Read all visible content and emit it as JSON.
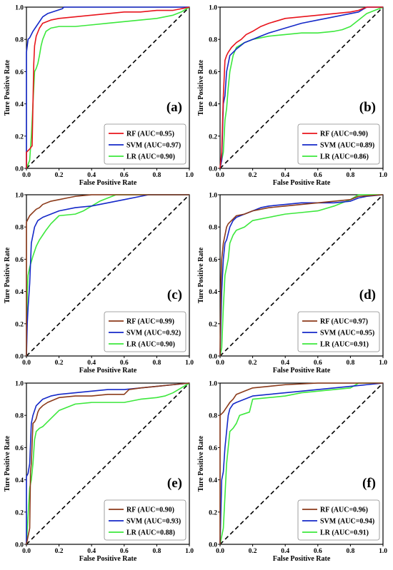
{
  "chart_data": [
    {
      "type": "line",
      "label": "(a)",
      "xlabel": "False Positive Rate",
      "ylabel": "Ture Positive Rate",
      "xlim": [
        0,
        1
      ],
      "ylim": [
        0,
        1
      ],
      "xticks": [
        "0.0",
        "0.2",
        "0.4",
        "0.6",
        "0.8",
        "1.0"
      ],
      "yticks": [
        "0.0",
        "0.2",
        "0.4",
        "0.6",
        "0.8",
        "1.0"
      ],
      "legend_position": "bottom-right",
      "series": [
        {
          "name": "RF (AUC=0.95)",
          "color": "#e8141c",
          "x": [
            0,
            0,
            0.02,
            0.035,
            0.04,
            0.045,
            0.05,
            0.06,
            0.08,
            0.1,
            0.15,
            0.2,
            0.3,
            0.4,
            0.5,
            0.6,
            0.7,
            0.8,
            0.9,
            0.95,
            1
          ],
          "y": [
            0,
            0.1,
            0.12,
            0.14,
            0.4,
            0.65,
            0.76,
            0.82,
            0.87,
            0.9,
            0.92,
            0.93,
            0.94,
            0.95,
            0.96,
            0.97,
            0.97,
            0.98,
            0.98,
            0.99,
            1
          ]
        },
        {
          "name": "SVM (AUC=0.97)",
          "color": "#1428c8",
          "x": [
            0,
            0,
            0.01,
            0.02,
            0.03,
            0.04,
            0.06,
            0.08,
            0.1,
            0.13,
            0.16,
            0.19,
            0.22,
            0.23,
            1
          ],
          "y": [
            0,
            0.72,
            0.8,
            0.81,
            0.83,
            0.85,
            0.88,
            0.91,
            0.94,
            0.96,
            0.97,
            0.98,
            0.99,
            1,
            1
          ]
        },
        {
          "name": "LR (AUC=0.90)",
          "color": "#3ce83c",
          "x": [
            0,
            0.02,
            0.03,
            0.04,
            0.05,
            0.06,
            0.07,
            0.08,
            0.09,
            0.1,
            0.12,
            0.15,
            0.2,
            0.3,
            0.4,
            0.5,
            0.6,
            0.7,
            0.8,
            0.9,
            0.95,
            1
          ],
          "y": [
            0,
            0.05,
            0.2,
            0.4,
            0.6,
            0.62,
            0.65,
            0.7,
            0.76,
            0.8,
            0.85,
            0.87,
            0.88,
            0.88,
            0.89,
            0.9,
            0.91,
            0.92,
            0.93,
            0.95,
            0.97,
            1
          ]
        }
      ]
    },
    {
      "type": "line",
      "label": "(b)",
      "xlabel": "False Positive Rate",
      "ylabel": "Ture Positive Rate",
      "xlim": [
        0,
        1
      ],
      "ylim": [
        0,
        1
      ],
      "xticks": [
        "0.0",
        "0.2",
        "0.4",
        "0.6",
        "0.8",
        "1.0"
      ],
      "yticks": [
        "0.0",
        "0.2",
        "0.4",
        "0.6",
        "0.8",
        "1.0"
      ],
      "legend_position": "bottom-right",
      "series": [
        {
          "name": "RF (AUC=0.90)",
          "color": "#e8141c",
          "x": [
            0,
            0.01,
            0.02,
            0.03,
            0.04,
            0.05,
            0.07,
            0.1,
            0.13,
            0.16,
            0.2,
            0.25,
            0.3,
            0.4,
            0.5,
            0.6,
            0.7,
            0.8,
            0.85,
            0.9,
            1
          ],
          "y": [
            0,
            0.1,
            0.45,
            0.67,
            0.7,
            0.72,
            0.75,
            0.78,
            0.8,
            0.83,
            0.85,
            0.88,
            0.9,
            0.93,
            0.94,
            0.95,
            0.96,
            0.97,
            0.98,
            1,
            1
          ]
        },
        {
          "name": "SVM (AUC=0.89)",
          "color": "#1428c8",
          "x": [
            0,
            0.01,
            0.02,
            0.03,
            0.04,
            0.05,
            0.06,
            0.08,
            0.1,
            0.15,
            0.2,
            0.25,
            0.3,
            0.4,
            0.5,
            0.6,
            0.7,
            0.8,
            0.85,
            0.9,
            1
          ],
          "y": [
            0,
            0.05,
            0.4,
            0.45,
            0.6,
            0.65,
            0.7,
            0.72,
            0.74,
            0.78,
            0.8,
            0.82,
            0.84,
            0.87,
            0.9,
            0.92,
            0.94,
            0.96,
            0.97,
            1,
            1
          ]
        },
        {
          "name": "LR (AUC=0.86)",
          "color": "#3ce83c",
          "x": [
            0,
            0.02,
            0.03,
            0.04,
            0.05,
            0.06,
            0.08,
            0.1,
            0.15,
            0.2,
            0.3,
            0.4,
            0.5,
            0.6,
            0.7,
            0.75,
            0.8,
            0.85,
            0.9,
            0.95,
            1
          ],
          "y": [
            0,
            0.1,
            0.3,
            0.37,
            0.5,
            0.6,
            0.7,
            0.75,
            0.78,
            0.8,
            0.82,
            0.83,
            0.84,
            0.84,
            0.85,
            0.86,
            0.88,
            0.92,
            0.96,
            0.98,
            1
          ]
        }
      ]
    },
    {
      "type": "line",
      "label": "(c)",
      "xlabel": "False Positive Rate",
      "ylabel": "Ture Positive Rate",
      "xlim": [
        0,
        1
      ],
      "ylim": [
        0,
        1
      ],
      "xticks": [
        "0.0",
        "0.2",
        "0.4",
        "0.6",
        "0.8",
        "1.0"
      ],
      "yticks": [
        "0.0",
        "0.2",
        "0.4",
        "0.6",
        "0.8",
        "1.0"
      ],
      "legend_position": "bottom-right",
      "series": [
        {
          "name": "RF (AUC=0.99)",
          "color": "#8b3a1a",
          "x": [
            0,
            0,
            0.01,
            0.02,
            0.04,
            0.06,
            0.08,
            0.1,
            0.15,
            0.2,
            0.25,
            0.3,
            0.35,
            0.4,
            1
          ],
          "y": [
            0,
            0.83,
            0.85,
            0.87,
            0.89,
            0.91,
            0.92,
            0.94,
            0.96,
            0.97,
            0.98,
            0.99,
            0.995,
            1,
            1
          ]
        },
        {
          "name": "SVM (AUC=0.92)",
          "color": "#1428c8",
          "x": [
            0,
            0.005,
            0.01,
            0.02,
            0.03,
            0.05,
            0.07,
            0.1,
            0.15,
            0.2,
            0.3,
            0.4,
            0.5,
            0.6,
            0.7,
            0.75,
            1
          ],
          "y": [
            0,
            0.2,
            0.3,
            0.45,
            0.7,
            0.8,
            0.84,
            0.86,
            0.88,
            0.9,
            0.92,
            0.93,
            0.95,
            0.97,
            0.99,
            1,
            1
          ]
        },
        {
          "name": "LR (AUC=0.90)",
          "color": "#3ce83c",
          "x": [
            0,
            0.005,
            0.01,
            0.02,
            0.04,
            0.06,
            0.08,
            0.1,
            0.12,
            0.15,
            0.2,
            0.3,
            0.35,
            0.4,
            0.45,
            0.5,
            0.55,
            1
          ],
          "y": [
            0,
            0.4,
            0.5,
            0.55,
            0.62,
            0.68,
            0.72,
            0.75,
            0.78,
            0.82,
            0.87,
            0.88,
            0.9,
            0.93,
            0.96,
            0.98,
            1,
            1
          ]
        }
      ]
    },
    {
      "type": "line",
      "label": "(d)",
      "xlabel": "False Positive Rate",
      "ylabel": "Ture Positive Rate",
      "xlim": [
        0,
        1
      ],
      "ylim": [
        0,
        1
      ],
      "xticks": [
        "0.0",
        "0.2",
        "0.4",
        "0.6",
        "0.8",
        "1.0"
      ],
      "yticks": [
        "0.0",
        "0.2",
        "0.4",
        "0.6",
        "0.8",
        "1.0"
      ],
      "legend_position": "bottom-right",
      "series": [
        {
          "name": "RF (AUC=0.97)",
          "color": "#8b3a1a",
          "x": [
            0,
            0.005,
            0.01,
            0.02,
            0.03,
            0.04,
            0.05,
            0.06,
            0.08,
            0.1,
            0.15,
            0.2,
            0.3,
            0.4,
            0.5,
            0.6,
            0.7,
            0.8,
            0.85,
            1
          ],
          "y": [
            0,
            0.45,
            0.6,
            0.7,
            0.75,
            0.8,
            0.82,
            0.83,
            0.85,
            0.87,
            0.88,
            0.9,
            0.92,
            0.93,
            0.94,
            0.95,
            0.96,
            0.97,
            0.99,
            1
          ]
        },
        {
          "name": "SVM (AUC=0.95)",
          "color": "#1428c8",
          "x": [
            0,
            0.01,
            0.02,
            0.03,
            0.04,
            0.06,
            0.08,
            0.1,
            0.15,
            0.2,
            0.25,
            0.3,
            0.4,
            0.5,
            0.6,
            0.7,
            0.8,
            0.85,
            0.9,
            1
          ],
          "y": [
            0,
            0.4,
            0.6,
            0.7,
            0.72,
            0.8,
            0.84,
            0.86,
            0.88,
            0.9,
            0.92,
            0.93,
            0.94,
            0.95,
            0.95,
            0.95,
            0.96,
            0.98,
            0.99,
            1
          ]
        },
        {
          "name": "LR (AUC=0.91)",
          "color": "#3ce83c",
          "x": [
            0,
            0.01,
            0.02,
            0.03,
            0.04,
            0.05,
            0.06,
            0.08,
            0.1,
            0.15,
            0.2,
            0.3,
            0.4,
            0.5,
            0.6,
            0.7,
            0.8,
            0.85,
            1
          ],
          "y": [
            0,
            0.05,
            0.3,
            0.5,
            0.55,
            0.6,
            0.7,
            0.75,
            0.78,
            0.8,
            0.84,
            0.86,
            0.88,
            0.89,
            0.9,
            0.93,
            0.97,
            1,
            1
          ]
        }
      ]
    },
    {
      "type": "line",
      "label": "(e)",
      "xlabel": "False Positive Rate",
      "ylabel": "Ture Positive Rate",
      "xlim": [
        0,
        1
      ],
      "ylim": [
        0,
        1
      ],
      "xticks": [
        "0.0",
        "0.2",
        "0.4",
        "0.6",
        "0.8",
        "1.0"
      ],
      "yticks": [
        "0.0",
        "0.2",
        "0.4",
        "0.6",
        "0.8",
        "1.0"
      ],
      "legend_position": "bottom-right",
      "series": [
        {
          "name": "RF (AUC=0.90)",
          "color": "#8b3a1a",
          "x": [
            0,
            0.01,
            0.02,
            0.025,
            0.03,
            0.04,
            0.05,
            0.06,
            0.07,
            0.08,
            0.1,
            0.13,
            0.2,
            0.3,
            0.4,
            0.5,
            0.6,
            0.63,
            0.7,
            0.8,
            0.9,
            1
          ],
          "y": [
            0,
            0.05,
            0.1,
            0.45,
            0.5,
            0.75,
            0.76,
            0.78,
            0.82,
            0.84,
            0.86,
            0.88,
            0.91,
            0.92,
            0.92,
            0.93,
            0.93,
            0.96,
            0.97,
            0.98,
            0.99,
            1
          ]
        },
        {
          "name": "SVM (AUC=0.93)",
          "color": "#1428c8",
          "x": [
            0,
            0,
            0.01,
            0.02,
            0.03,
            0.04,
            0.06,
            0.08,
            0.1,
            0.15,
            0.2,
            0.3,
            0.4,
            0.5,
            0.6,
            0.7,
            0.8,
            0.9,
            1
          ],
          "y": [
            0,
            0.42,
            0.44,
            0.5,
            0.75,
            0.8,
            0.86,
            0.88,
            0.9,
            0.92,
            0.93,
            0.94,
            0.95,
            0.96,
            0.96,
            0.97,
            0.98,
            0.99,
            1
          ]
        },
        {
          "name": "LR (AUC=0.88)",
          "color": "#3ce83c",
          "x": [
            0,
            0.02,
            0.03,
            0.04,
            0.05,
            0.06,
            0.08,
            0.1,
            0.15,
            0.2,
            0.3,
            0.4,
            0.5,
            0.6,
            0.7,
            0.8,
            0.85,
            0.9,
            0.95,
            1
          ],
          "y": [
            0,
            0.35,
            0.4,
            0.5,
            0.65,
            0.7,
            0.72,
            0.73,
            0.78,
            0.83,
            0.87,
            0.88,
            0.88,
            0.88,
            0.9,
            0.91,
            0.92,
            0.94,
            0.97,
            1
          ]
        }
      ]
    },
    {
      "type": "line",
      "label": "(f)",
      "xlabel": "False Positive Rate",
      "ylabel": "Ture Positive Rate",
      "xlim": [
        0,
        1
      ],
      "ylim": [
        0,
        1
      ],
      "xticks": [
        "0.0",
        "0.2",
        "0.4",
        "0.6",
        "0.8",
        "1.0"
      ],
      "yticks": [
        "0.0",
        "0.2",
        "0.4",
        "0.6",
        "0.8",
        "1.0"
      ],
      "legend_position": "bottom-right",
      "series": [
        {
          "name": "RF (AUC=0.96)",
          "color": "#8b3a1a",
          "x": [
            0,
            0,
            0.01,
            0.02,
            0.04,
            0.06,
            0.08,
            0.1,
            0.15,
            0.2,
            0.3,
            0.4,
            0.5,
            0.6,
            1
          ],
          "y": [
            0,
            0.8,
            0.81,
            0.82,
            0.85,
            0.88,
            0.9,
            0.93,
            0.95,
            0.97,
            0.98,
            0.99,
            0.995,
            1,
            1
          ]
        },
        {
          "name": "SVM (AUC=0.94)",
          "color": "#1428c8",
          "x": [
            0,
            0.01,
            0.02,
            0.03,
            0.04,
            0.05,
            0.06,
            0.08,
            0.1,
            0.15,
            0.2,
            0.3,
            0.4,
            0.5,
            0.6,
            0.7,
            0.8,
            0.9,
            1
          ],
          "y": [
            0,
            0.4,
            0.45,
            0.6,
            0.7,
            0.8,
            0.84,
            0.87,
            0.88,
            0.9,
            0.92,
            0.93,
            0.94,
            0.95,
            0.96,
            0.97,
            0.98,
            0.99,
            1
          ]
        },
        {
          "name": "LR (AUC=0.91)",
          "color": "#3ce83c",
          "x": [
            0,
            0.02,
            0.03,
            0.04,
            0.05,
            0.06,
            0.08,
            0.1,
            0.12,
            0.15,
            0.18,
            0.2,
            0.3,
            0.4,
            0.5,
            0.6,
            0.7,
            0.8,
            0.85,
            1
          ],
          "y": [
            0,
            0.1,
            0.3,
            0.5,
            0.6,
            0.7,
            0.72,
            0.75,
            0.8,
            0.81,
            0.82,
            0.9,
            0.91,
            0.92,
            0.94,
            0.95,
            0.96,
            0.97,
            1,
            1
          ]
        }
      ]
    }
  ]
}
